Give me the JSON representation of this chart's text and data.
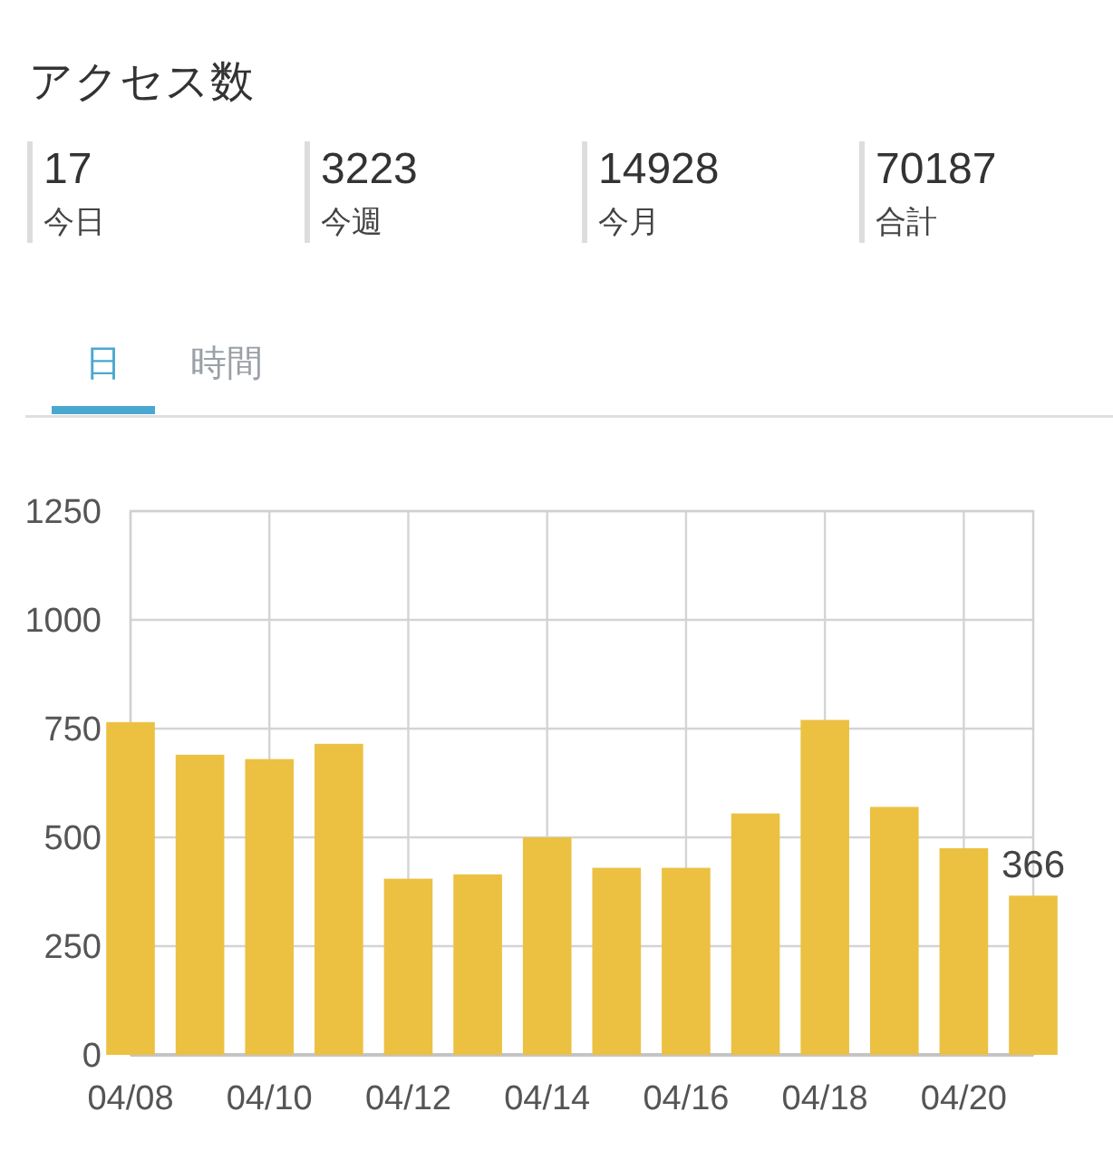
{
  "chart_data": [
    {
      "type": "other",
      "title": "アクセス数",
      "categories": [
        "今日",
        "今週",
        "今月",
        "合計"
      ],
      "values": [
        17,
        3223,
        14928,
        70187
      ],
      "data_labels": true
    },
    {
      "type": "bar",
      "x": [
        "--04-08",
        "--04-09",
        "--04-10",
        "--04-11",
        "--04-12",
        "--04-13",
        "--04-14",
        "--04-15",
        "--04-16",
        "--04-17",
        "--04-18",
        "--04-19",
        "--04-20",
        "--04-21"
      ],
      "values": [
        765,
        690,
        680,
        715,
        405,
        415,
        500,
        430,
        430,
        555,
        770,
        570,
        475,
        366
      ],
      "value_labels": [
        null,
        null,
        null,
        null,
        null,
        null,
        null,
        null,
        null,
        null,
        null,
        null,
        null,
        "366"
      ],
      "color": "#ecc142",
      "xlim": [
        "--04-08",
        "--04-21"
      ],
      "xticks": [
        {
          "value": "--04-08",
          "label": "04/08"
        },
        {
          "value": "--04-10",
          "label": "04/10"
        },
        {
          "value": "--04-12",
          "label": "04/12"
        },
        {
          "value": "--04-14",
          "label": "04/14"
        },
        {
          "value": "--04-16",
          "label": "04/16"
        },
        {
          "value": "--04-18",
          "label": "04/18"
        },
        {
          "value": "--04-20",
          "label": "04/20"
        }
      ],
      "ylim": [
        0,
        1250
      ],
      "yticks": [
        0,
        250,
        500,
        750,
        1000,
        1250
      ],
      "grid": true,
      "annotations": [
        "日",
        "時間"
      ]
    }
  ]
}
